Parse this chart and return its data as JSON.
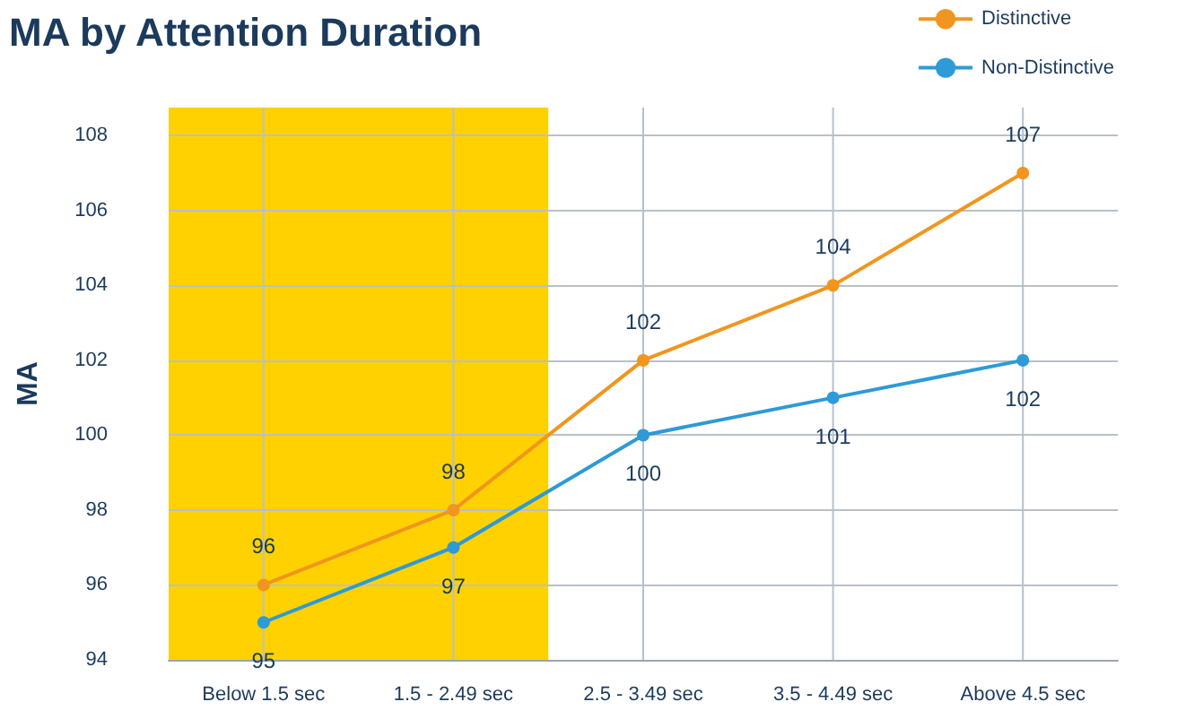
{
  "chart_data": {
    "type": "line",
    "title": "MA by Attention Duration",
    "ylabel": "MA",
    "categories": [
      "Below 1.5 sec",
      "1.5 - 2.49 sec",
      "2.5 - 3.49 sec",
      "3.5 - 4.49 sec",
      "Above 4.5 sec"
    ],
    "series": [
      {
        "name": "Distinctive",
        "color": "#f0961e",
        "values": [
          96,
          98,
          102,
          104,
          107
        ]
      },
      {
        "name": "Non-Distinctive",
        "color": "#2e9ad6",
        "values": [
          95,
          97,
          100,
          101,
          102
        ]
      }
    ],
    "ylim": [
      94,
      108.75
    ],
    "yticks": [
      94,
      96,
      98,
      100,
      102,
      104,
      106,
      108
    ],
    "bands": [
      {
        "axis": "x",
        "from": "Below 1.5 sec",
        "to": "1.5 - 2.49 sec",
        "color": "#ffd100"
      }
    ],
    "grid": true,
    "legend": "top right",
    "marker": "circle",
    "line_style": "solid",
    "data_labels": true
  }
}
